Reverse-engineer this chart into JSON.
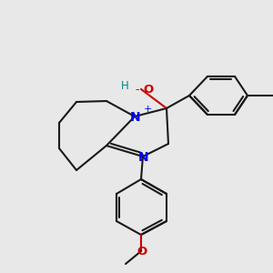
{
  "bg": "#e8e8e8",
  "bond_color": "#1a1a1a",
  "N_color": "#0000ee",
  "O_color": "#cc0000",
  "H_color": "#008888",
  "lw": 1.5,
  "figsize": [
    3.0,
    3.0
  ],
  "dpi": 100,
  "xlim": [
    0,
    300
  ],
  "ylim": [
    0,
    300
  ]
}
